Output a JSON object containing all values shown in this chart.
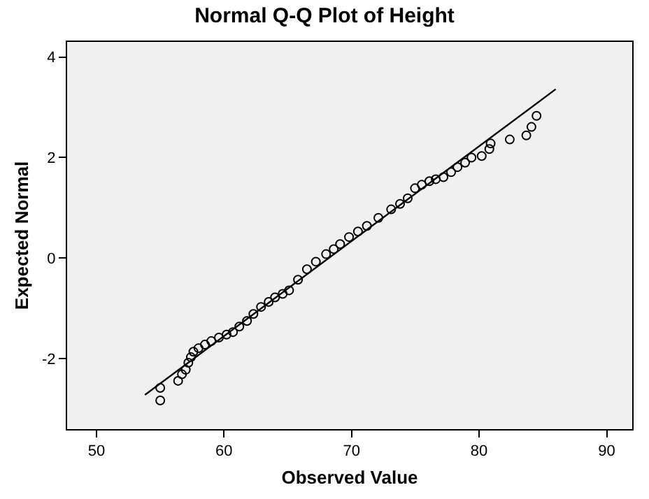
{
  "chart_data": {
    "type": "scatter",
    "title": "Normal Q-Q Plot of Height",
    "xlabel": "Observed Value",
    "ylabel": "Expected Normal",
    "xlim": [
      47.7,
      92
    ],
    "xticks": [
      50,
      60,
      70,
      80,
      90
    ],
    "ylim": [
      -3.4,
      4.3
    ],
    "yticks": [
      -2,
      0,
      2,
      4
    ],
    "grid": false,
    "marker": "circle",
    "series": [
      {
        "color": "#000000",
        "x": [
          55.0,
          55.0,
          56.4,
          56.7,
          57.0,
          57.2,
          57.4,
          57.6,
          58.0,
          58.5,
          59.0,
          59.6,
          60.2,
          60.7,
          61.2,
          61.8,
          62.3,
          62.9,
          63.5,
          64.0,
          64.6,
          65.1,
          65.8,
          66.5,
          67.2,
          68.0,
          68.6,
          69.1,
          69.8,
          70.5,
          71.2,
          72.1,
          73.1,
          73.8,
          74.4,
          74.97,
          75.5,
          76.1,
          76.6,
          77.2,
          77.8,
          78.3,
          78.9,
          79.4,
          80.2,
          80.8,
          80.9,
          82.4,
          83.7,
          84.1,
          84.5
        ],
        "values": [
          -2.83,
          -2.58,
          -2.44,
          -2.31,
          -2.22,
          -2.08,
          -1.97,
          -1.86,
          -1.79,
          -1.72,
          -1.65,
          -1.58,
          -1.52,
          -1.47,
          -1.36,
          -1.25,
          -1.11,
          -0.97,
          -0.87,
          -0.78,
          -0.71,
          -0.64,
          -0.43,
          -0.22,
          -0.07,
          0.08,
          0.18,
          0.28,
          0.42,
          0.53,
          0.64,
          0.8,
          0.97,
          1.08,
          1.19,
          1.39,
          1.46,
          1.53,
          1.57,
          1.61,
          1.71,
          1.81,
          1.9,
          2.0,
          2.03,
          2.17,
          2.28,
          2.36,
          2.44,
          2.61,
          2.83
        ]
      },
      {
        "type": "line",
        "color": "#000000",
        "marker": "none",
        "x": [
          53.8,
          86.0
        ],
        "values": [
          -2.72,
          3.36
        ]
      }
    ]
  }
}
